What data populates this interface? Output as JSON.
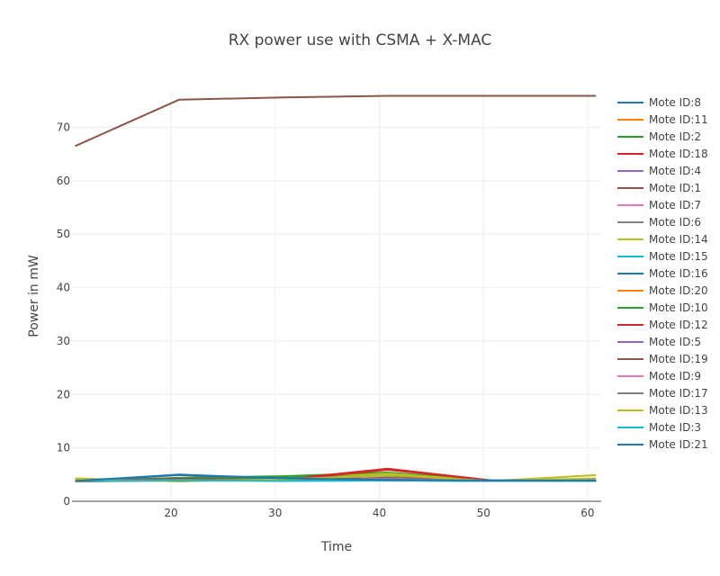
{
  "chart_data": {
    "type": "line",
    "title": "RX power use with CSMA + X-MAC",
    "xlabel": "Time",
    "ylabel": "Power in mW",
    "xlim": [
      10.5,
      61.3
    ],
    "ylim": [
      0,
      77
    ],
    "xticks": [
      20,
      30,
      40,
      50,
      60
    ],
    "yticks": [
      0,
      10,
      20,
      30,
      40,
      50,
      60,
      70
    ],
    "grid": true,
    "legend_position": "right",
    "x": [
      10.8,
      20.8,
      30.8,
      40.8,
      50.8,
      60.8
    ],
    "series": [
      {
        "name": "Mote ID:8",
        "color": "#1f77b4",
        "values": [
          3.8,
          4.2,
          3.9,
          3.9,
          3.8,
          3.8
        ]
      },
      {
        "name": "Mote ID:11",
        "color": "#ff7f0e",
        "values": [
          3.7,
          3.9,
          4.0,
          4.1,
          3.8,
          3.9
        ]
      },
      {
        "name": "Mote ID:2",
        "color": "#2ca02c",
        "values": [
          3.8,
          4.4,
          4.7,
          5.4,
          3.9,
          3.8
        ]
      },
      {
        "name": "Mote ID:18",
        "color": "#d62728",
        "values": [
          3.7,
          4.0,
          4.1,
          6.1,
          3.9,
          3.8
        ]
      },
      {
        "name": "Mote ID:4",
        "color": "#9467bd",
        "values": [
          3.8,
          3.9,
          4.0,
          4.0,
          3.8,
          3.9
        ]
      },
      {
        "name": "Mote ID:1",
        "color": "#8c564b",
        "values": [
          66.5,
          75.2,
          75.6,
          75.9,
          75.9,
          75.9
        ]
      },
      {
        "name": "Mote ID:7",
        "color": "#e377c2",
        "values": [
          3.8,
          4.0,
          3.9,
          4.2,
          3.8,
          3.8
        ]
      },
      {
        "name": "Mote ID:6",
        "color": "#7f7f7f",
        "values": [
          3.8,
          4.1,
          3.9,
          4.3,
          3.8,
          3.8
        ]
      },
      {
        "name": "Mote ID:14",
        "color": "#bcbd22",
        "values": [
          4.3,
          3.7,
          4.2,
          5.2,
          3.8,
          4.9
        ]
      },
      {
        "name": "Mote ID:15",
        "color": "#17becf",
        "values": [
          3.8,
          4.0,
          3.8,
          3.9,
          3.8,
          3.8
        ]
      },
      {
        "name": "Mote ID:16",
        "color": "#1f77b4",
        "values": [
          3.8,
          4.9,
          4.2,
          4.1,
          3.9,
          3.9
        ]
      },
      {
        "name": "Mote ID:20",
        "color": "#ff7f0e",
        "values": [
          3.7,
          4.0,
          4.1,
          4.2,
          3.8,
          3.8
        ]
      },
      {
        "name": "Mote ID:10",
        "color": "#2ca02c",
        "values": [
          3.8,
          4.3,
          4.4,
          4.8,
          3.9,
          3.9
        ]
      },
      {
        "name": "Mote ID:12",
        "color": "#d62728",
        "values": [
          3.8,
          4.2,
          4.0,
          5.9,
          3.9,
          3.8
        ]
      },
      {
        "name": "Mote ID:5",
        "color": "#9467bd",
        "values": [
          3.8,
          3.9,
          3.9,
          4.0,
          3.8,
          3.8
        ]
      },
      {
        "name": "Mote ID:19",
        "color": "#8c564b",
        "values": [
          3.8,
          4.1,
          4.0,
          4.4,
          3.9,
          3.9
        ]
      },
      {
        "name": "Mote ID:9",
        "color": "#e377c2",
        "values": [
          3.8,
          4.0,
          3.9,
          4.2,
          3.8,
          3.8
        ]
      },
      {
        "name": "Mote ID:17",
        "color": "#7f7f7f",
        "values": [
          3.8,
          4.0,
          3.9,
          4.1,
          3.8,
          3.8
        ]
      },
      {
        "name": "Mote ID:13",
        "color": "#bcbd22",
        "values": [
          4.0,
          3.8,
          4.1,
          4.9,
          3.8,
          4.3
        ]
      },
      {
        "name": "Mote ID:3",
        "color": "#17becf",
        "values": [
          3.8,
          3.9,
          3.8,
          3.9,
          3.8,
          3.8
        ]
      },
      {
        "name": "Mote ID:21",
        "color": "#1f77b4",
        "values": [
          3.8,
          5.0,
          4.3,
          4.0,
          3.9,
          3.9
        ]
      }
    ]
  }
}
